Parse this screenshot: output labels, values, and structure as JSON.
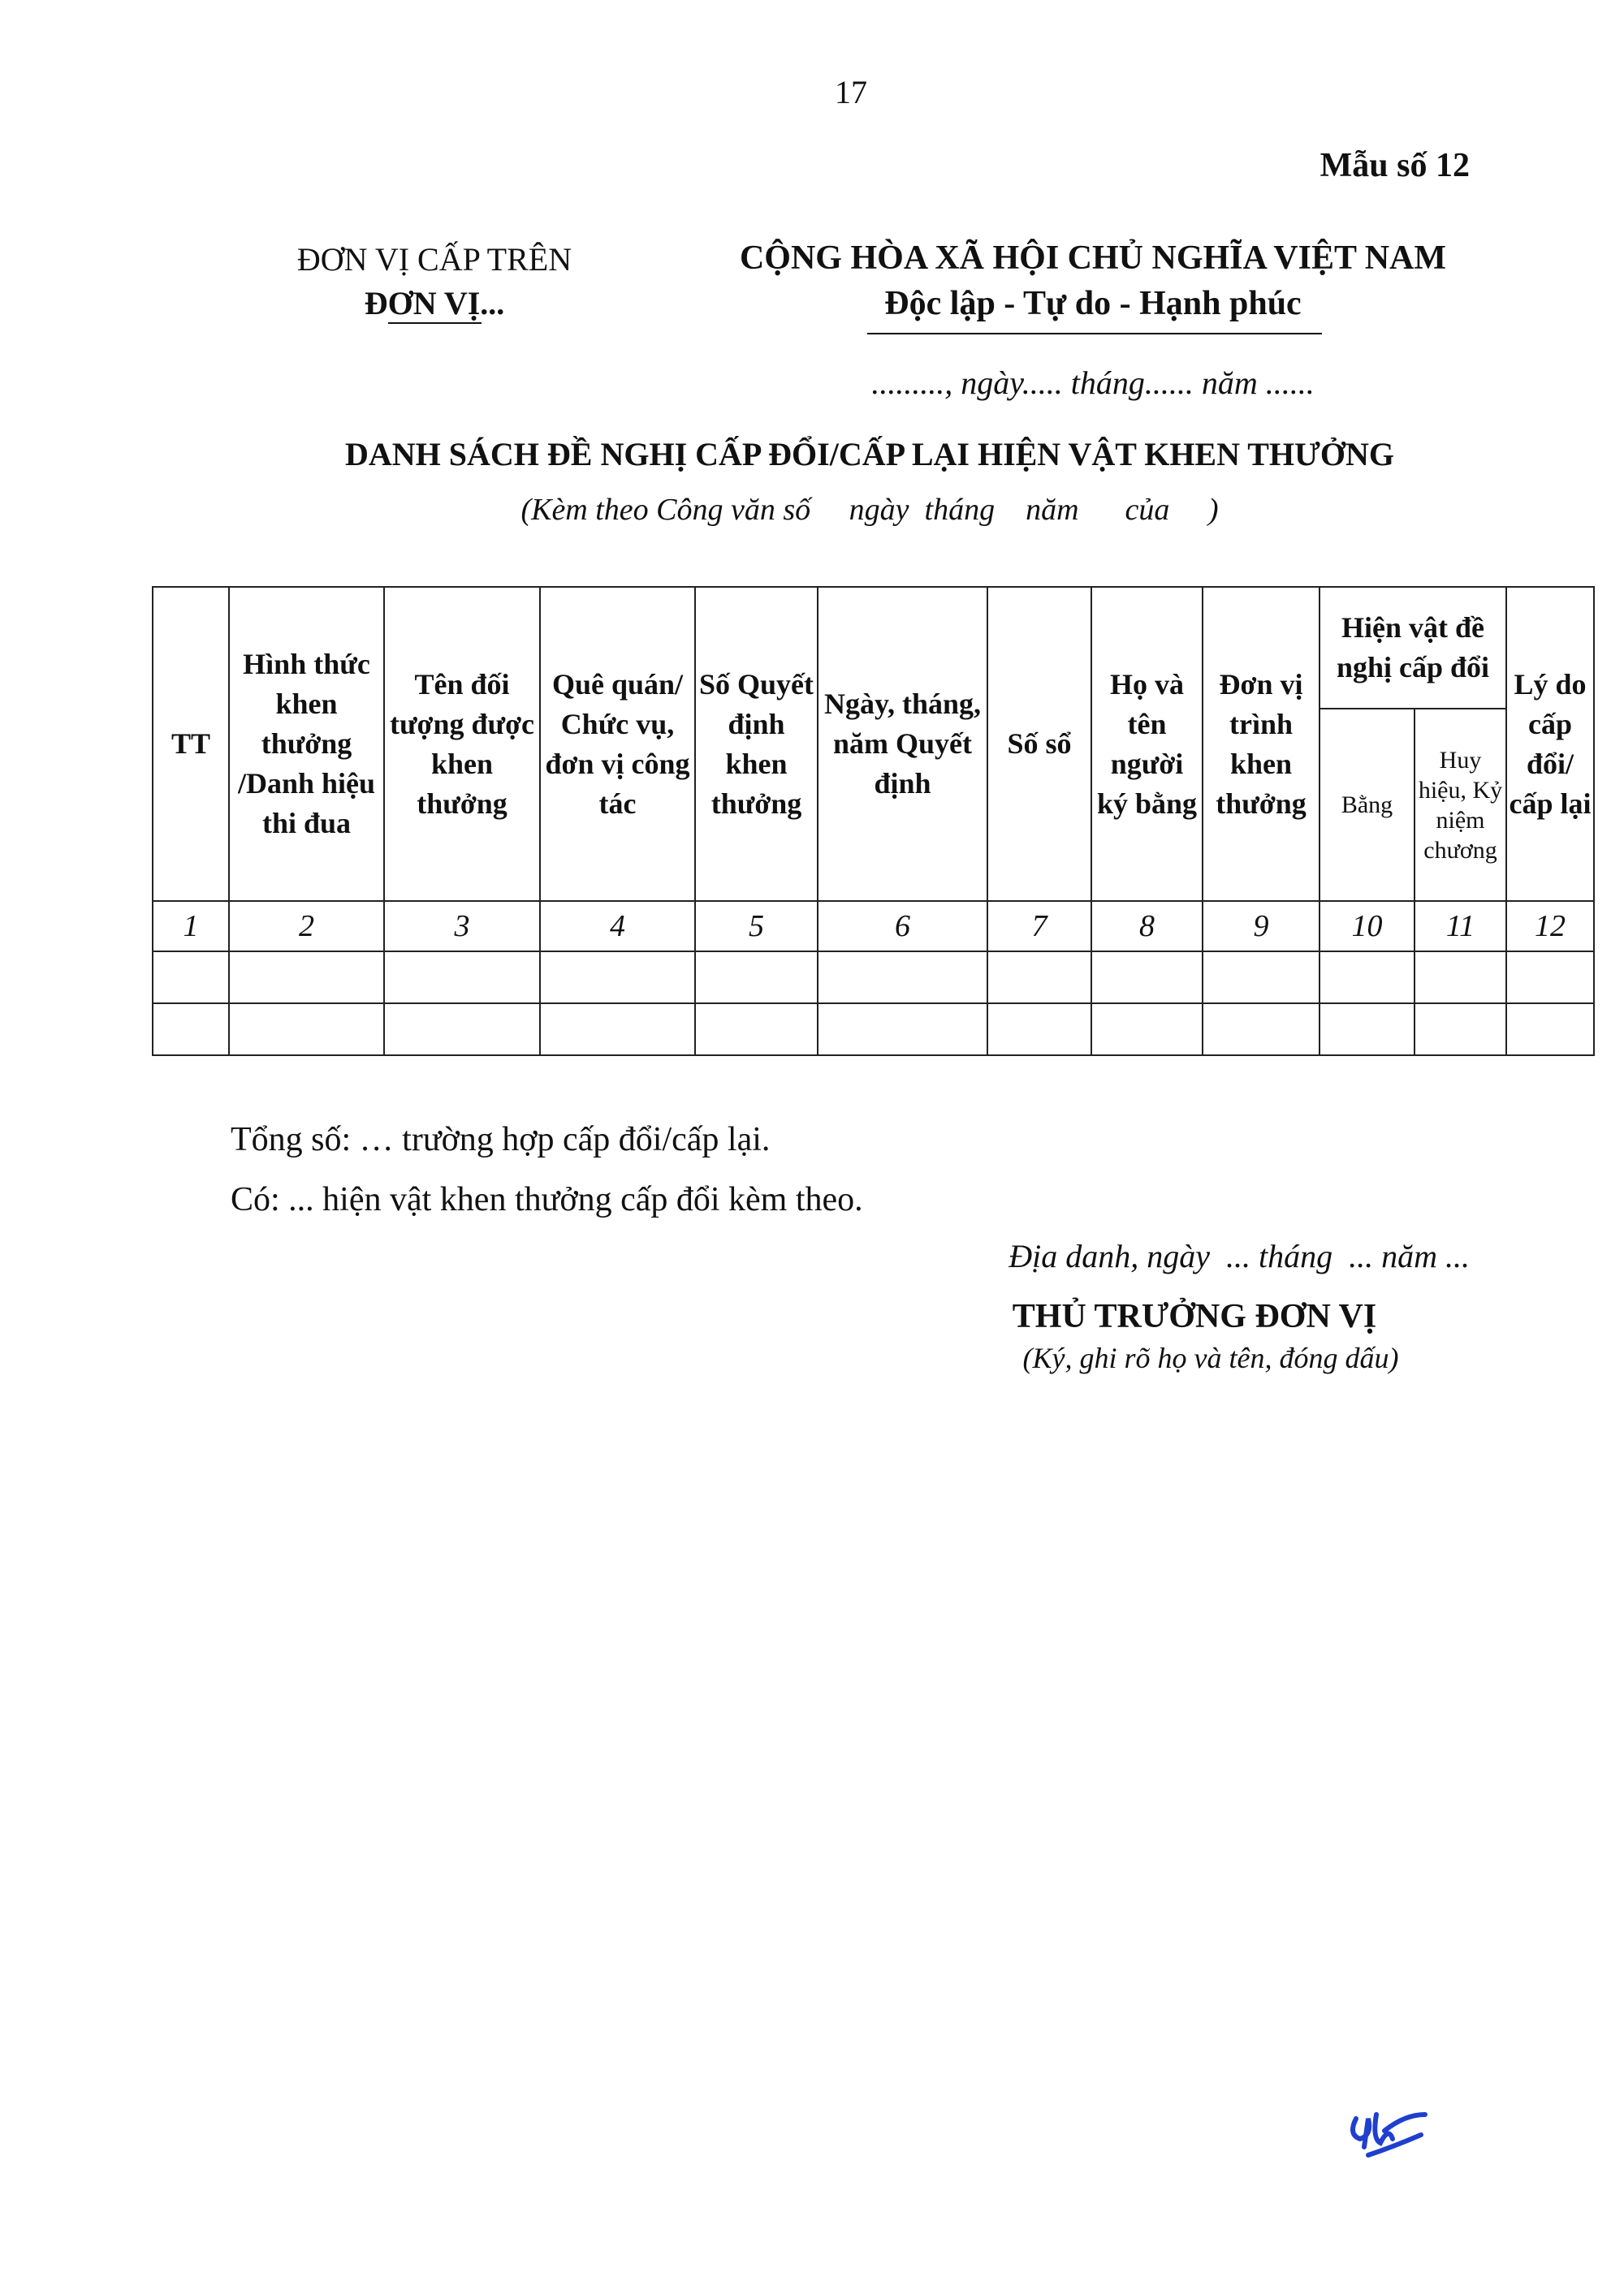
{
  "page_number": "17",
  "form_number": "Mẫu số 12",
  "left_header": {
    "line1": "ĐƠN VỊ CẤP TRÊN",
    "line2": "ĐƠN VỊ..."
  },
  "right_header": {
    "line1": "CỘNG HÒA XÃ HỘI CHỦ NGHĨA VIỆT NAM",
    "line2": "Độc lập - Tự do - Hạnh phúc"
  },
  "date_line": "........., ngày..... tháng...... năm ......",
  "title": "DANH SÁCH ĐỀ NGHỊ CẤP ĐỔI/CẤP LẠI HIỆN VẬT KHEN THƯỞNG",
  "subtitle": "(Kèm theo Công văn số     ngày  tháng    năm      của     )",
  "table": {
    "headers": [
      "TT",
      "Hình thức khen thưởng /Danh hiệu thi đua",
      "Tên đối tượng được khen thưởng",
      "Quê quán/ Chức vụ, đơn vị công tác",
      "Số Quyết định khen thưởng",
      "Ngày, tháng, năm Quyết định",
      "Số sổ",
      "Họ và tên người ký bằng",
      "Đơn vị trình khen thưởng",
      "Hiện vật đề nghị cấp đổi",
      "Lý do cấp đổi/ cấp lại"
    ],
    "subheaders": [
      "Bằng",
      "Huy hiệu, Kỷ niệm chương"
    ],
    "column_numbers": [
      "1",
      "2",
      "3",
      "4",
      "5",
      "6",
      "7",
      "8",
      "9",
      "10",
      "11",
      "12"
    ],
    "empty_rows": 2
  },
  "summary": {
    "total": "Tổng số: … trường hợp cấp đổi/cấp lại.",
    "items": "Có: ... hiện vật khen thưởng cấp đổi kèm theo."
  },
  "signature": {
    "place_date": "Địa danh, ngày  ... tháng  ... năm ...",
    "title": "THỦ TRƯỞNG ĐƠN VỊ",
    "note": "(Ký, ghi rõ họ và tên, đóng dấu)"
  },
  "colors": {
    "ink": "#111111",
    "signature_ink": "#1f3fd0"
  }
}
